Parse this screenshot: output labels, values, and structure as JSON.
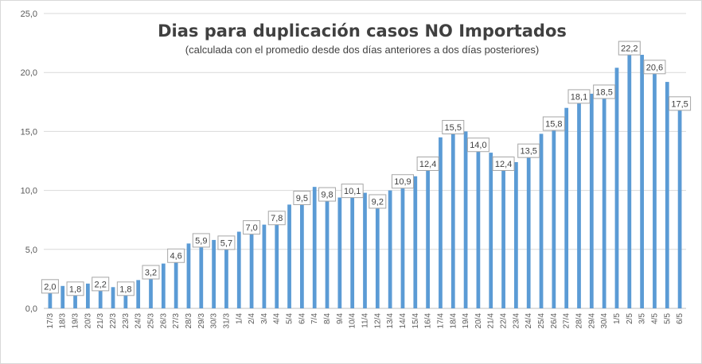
{
  "chart_data": {
    "type": "bar",
    "title": "Dias para duplicación casos NO Importados",
    "subtitle": "(calculada con el promedio  desde dos días anteriores a dos días posteriores)",
    "xlabel": "",
    "ylabel": "",
    "ylim": [
      0,
      25
    ],
    "yticks": [
      "0,0",
      "5,0",
      "10,0",
      "15,0",
      "20,0",
      "25,0"
    ],
    "grid": true,
    "bar_color": "#5b9bd5",
    "categories": [
      "17/3",
      "18/3",
      "19/3",
      "20/3",
      "21/3",
      "22/3",
      "23/3",
      "24/3",
      "25/3",
      "26/3",
      "27/3",
      "28/3",
      "29/3",
      "30/3",
      "31/3",
      "1/4",
      "2/4",
      "3/4",
      "4/4",
      "5/4",
      "6/4",
      "7/4",
      "8/4",
      "9/4",
      "10/4",
      "11/4",
      "12/4",
      "13/4",
      "14/4",
      "15/4",
      "16/4",
      "17/4",
      "18/4",
      "19/4",
      "20/4",
      "21/4",
      "22/4",
      "23/4",
      "24/4",
      "25/4",
      "26/4",
      "27/4",
      "28/4",
      "29/4",
      "30/4",
      "1/5",
      "2/5",
      "3/5",
      "4/5",
      "5/5",
      "6/5"
    ],
    "values": [
      2.0,
      1.9,
      1.8,
      2.1,
      2.2,
      1.8,
      1.8,
      2.4,
      3.2,
      3.8,
      4.6,
      5.5,
      5.9,
      5.8,
      5.7,
      6.5,
      7.0,
      7.1,
      7.8,
      8.8,
      9.5,
      10.3,
      9.8,
      9.4,
      10.1,
      9.8,
      9.2,
      10.0,
      10.9,
      11.2,
      12.4,
      14.5,
      15.5,
      15.0,
      14.0,
      13.2,
      12.4,
      12.4,
      13.5,
      14.8,
      15.8,
      17.0,
      18.1,
      18.2,
      18.5,
      20.4,
      22.2,
      21.5,
      20.6,
      19.2,
      17.5
    ],
    "data_labels": [
      {
        "index": 0,
        "text": "2,0"
      },
      {
        "index": 2,
        "text": "1,8"
      },
      {
        "index": 4,
        "text": "2,2"
      },
      {
        "index": 6,
        "text": "1,8"
      },
      {
        "index": 8,
        "text": "3,2"
      },
      {
        "index": 10,
        "text": "4,6"
      },
      {
        "index": 12,
        "text": "5,9"
      },
      {
        "index": 14,
        "text": "5,7"
      },
      {
        "index": 16,
        "text": "7,0"
      },
      {
        "index": 18,
        "text": "7,8"
      },
      {
        "index": 20,
        "text": "9,5"
      },
      {
        "index": 22,
        "text": "9,8"
      },
      {
        "index": 24,
        "text": "10,1"
      },
      {
        "index": 26,
        "text": "9,2"
      },
      {
        "index": 28,
        "text": "10,9"
      },
      {
        "index": 30,
        "text": "12,4"
      },
      {
        "index": 32,
        "text": "15,5"
      },
      {
        "index": 34,
        "text": "14,0"
      },
      {
        "index": 36,
        "text": "12,4"
      },
      {
        "index": 38,
        "text": "13,5"
      },
      {
        "index": 40,
        "text": "15,8"
      },
      {
        "index": 42,
        "text": "18,1"
      },
      {
        "index": 44,
        "text": "18,5"
      },
      {
        "index": 46,
        "text": "22,2"
      },
      {
        "index": 48,
        "text": "20,6"
      },
      {
        "index": 50,
        "text": "17,5"
      }
    ]
  }
}
